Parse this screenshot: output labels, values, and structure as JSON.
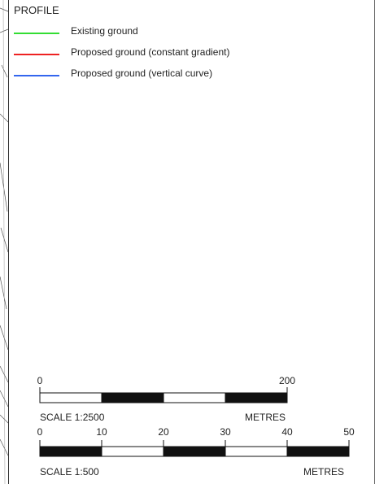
{
  "panel": {
    "title": "PROFILE",
    "legend": [
      {
        "label": "Existing ground",
        "color": "#33dd33"
      },
      {
        "label": "Proposed ground (constant gradient)",
        "color": "#ee2222"
      },
      {
        "label": "Proposed ground (vertical curve)",
        "color": "#3366ee"
      }
    ]
  },
  "scale_bars": [
    {
      "ticks": [
        "0",
        "200"
      ],
      "segments": [
        "white",
        "black",
        "white",
        "black"
      ],
      "scale_label": "SCALE 1:2500",
      "unit_label": "METRES"
    },
    {
      "ticks": [
        "0",
        "10",
        "20",
        "30",
        "40",
        "50"
      ],
      "segments": [
        "black",
        "white",
        "black",
        "white",
        "black"
      ],
      "scale_label": "SCALE 1:500",
      "unit_label": "METRES"
    }
  ]
}
